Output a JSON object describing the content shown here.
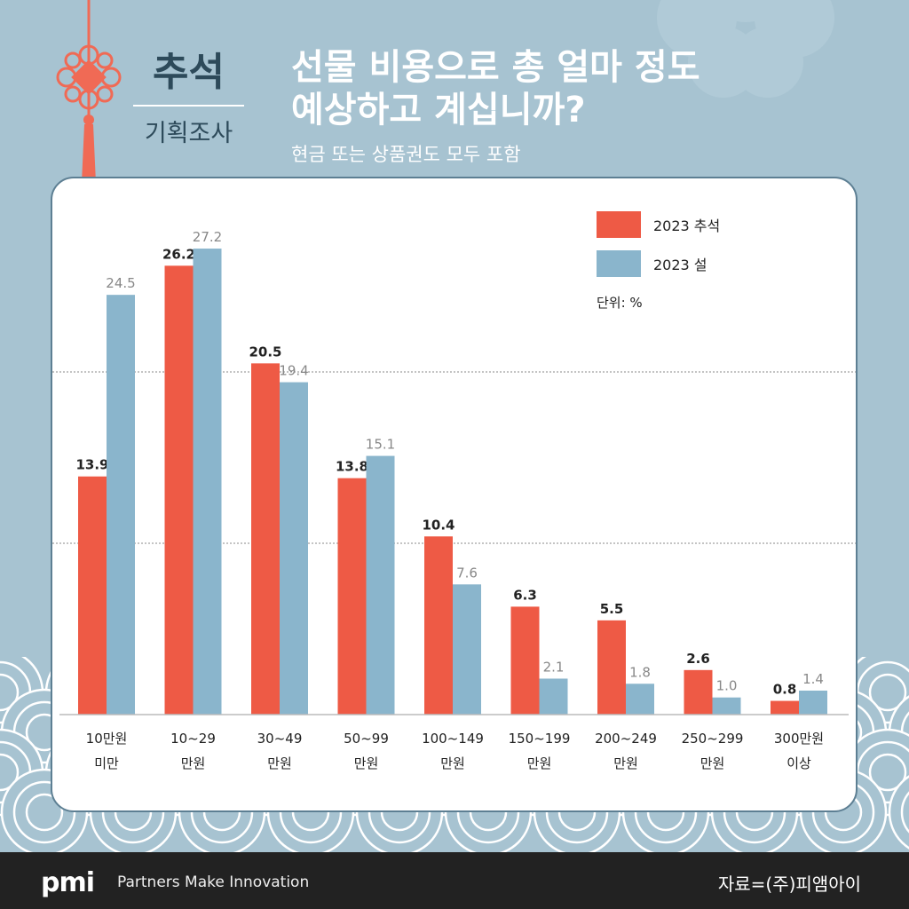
{
  "brand": {
    "line1": "추석",
    "line2": "기획조사"
  },
  "header": {
    "title_line1": "선물 비용으로 총 얼마 정도",
    "title_line2": "예상하고 계십니까?",
    "subtitle": "현금 또는 상품권도 모두 포함"
  },
  "chart_data": {
    "type": "bar",
    "title": "선물 비용으로 총 얼마 정도 예상하고 계십니까?",
    "unit": "단위: %",
    "categories": [
      [
        "10만원",
        "미만"
      ],
      [
        "10~29",
        "만원"
      ],
      [
        "30~49",
        "만원"
      ],
      [
        "50~99",
        "만원"
      ],
      [
        "100~149",
        "만원"
      ],
      [
        "150~199",
        "만원"
      ],
      [
        "200~249",
        "만원"
      ],
      [
        "250~299",
        "만원"
      ],
      [
        "300만원",
        "이상"
      ]
    ],
    "series": [
      {
        "name": "2023 추석",
        "color": "#ee5a45",
        "values": [
          13.9,
          26.2,
          20.5,
          13.8,
          10.4,
          6.3,
          5.5,
          2.6,
          0.8
        ]
      },
      {
        "name": "2023 설",
        "color": "#8ab5cc",
        "values": [
          24.5,
          27.2,
          19.4,
          15.1,
          7.6,
          2.1,
          1.8,
          1.0,
          1.4
        ]
      }
    ],
    "gridlines": [
      10,
      20
    ],
    "ylim": [
      0,
      28
    ],
    "legend": "top-right"
  },
  "footer": {
    "logo": "pmi",
    "tagline": "Partners Make Innovation",
    "source": "자료=(주)피앰아이"
  }
}
